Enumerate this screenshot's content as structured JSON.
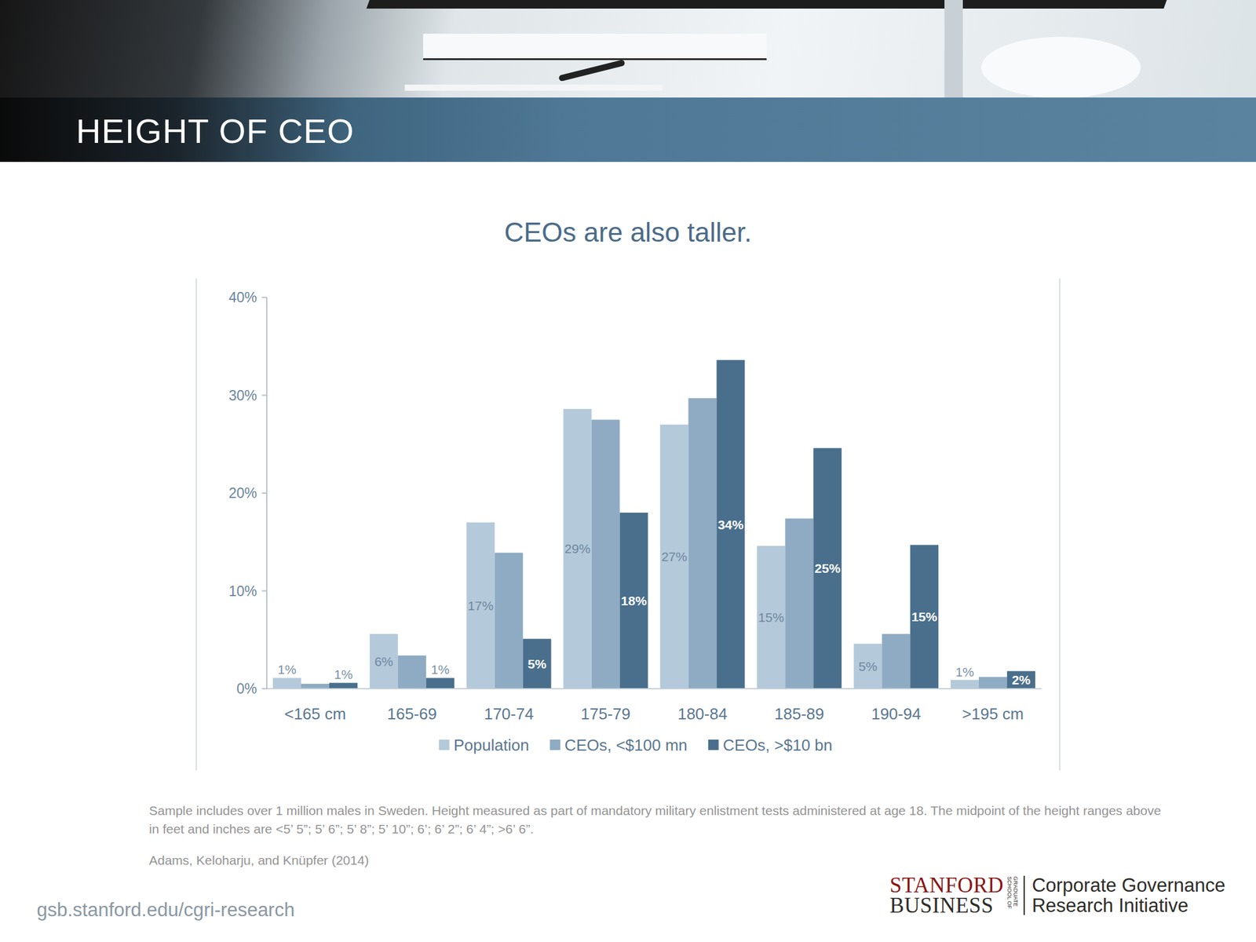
{
  "header": {
    "title": "HEIGHT OF CEO"
  },
  "chart_data": {
    "type": "bar",
    "title": "CEOs are also taller.",
    "categories": [
      "<165 cm",
      "165-69",
      "170-74",
      "175-79",
      "180-84",
      "185-89",
      "190-94",
      ">195 cm"
    ],
    "series": [
      {
        "name": "Population",
        "color": "#b4c9da",
        "data_labels": true,
        "values": [
          1.1,
          5.6,
          17.0,
          28.6,
          27.0,
          14.6,
          4.6,
          0.9
        ],
        "value_labels": [
          "1%",
          "6%",
          "17%",
          "29%",
          "27%",
          "15%",
          "5%",
          "1%"
        ]
      },
      {
        "name": "CEOs, <$100 mn",
        "color": "#8eabc3",
        "data_labels": false,
        "values": [
          0.5,
          3.4,
          13.9,
          27.5,
          29.7,
          17.4,
          5.6,
          1.2
        ]
      },
      {
        "name": "CEOs, >$10 bn",
        "color": "#4a6f8c",
        "data_labels": true,
        "values": [
          0.6,
          1.1,
          5.1,
          18.0,
          33.6,
          24.6,
          14.7,
          1.8
        ],
        "value_labels": [
          "1%",
          "1%",
          "5%",
          "18%",
          "34%",
          "25%",
          "15%",
          "2%"
        ]
      }
    ],
    "ylim": [
      0,
      40
    ],
    "yticks": [
      {
        "value": 0,
        "label": "0%"
      },
      {
        "value": 10,
        "label": "10%"
      },
      {
        "value": 20,
        "label": "20%"
      },
      {
        "value": 30,
        "label": "30%"
      },
      {
        "value": 40,
        "label": "40%"
      }
    ],
    "grid": false,
    "legend": "bottom"
  },
  "footer": {
    "note": "Sample includes over 1 million males in Sweden. Height measured as part of mandatory military enlistment tests administered at age 18. The midpoint of the height ranges above in feet and inches are <5’ 5”; 5’ 6”; 5’ 8”; 5’ 10”; 6’; 6’ 2”; 6’ 4”; >6’ 6”.",
    "source": "Adams, Keloharju, and Knüpfer (2014)",
    "url": "gsb.stanford.edu/cgri-research",
    "logo": {
      "line1": "STANFORD",
      "line2": "BUSINESS",
      "school": "GRADUATE SCHOOL OF",
      "initiative": [
        "Corporate Governance",
        "Research Initiative"
      ]
    }
  }
}
